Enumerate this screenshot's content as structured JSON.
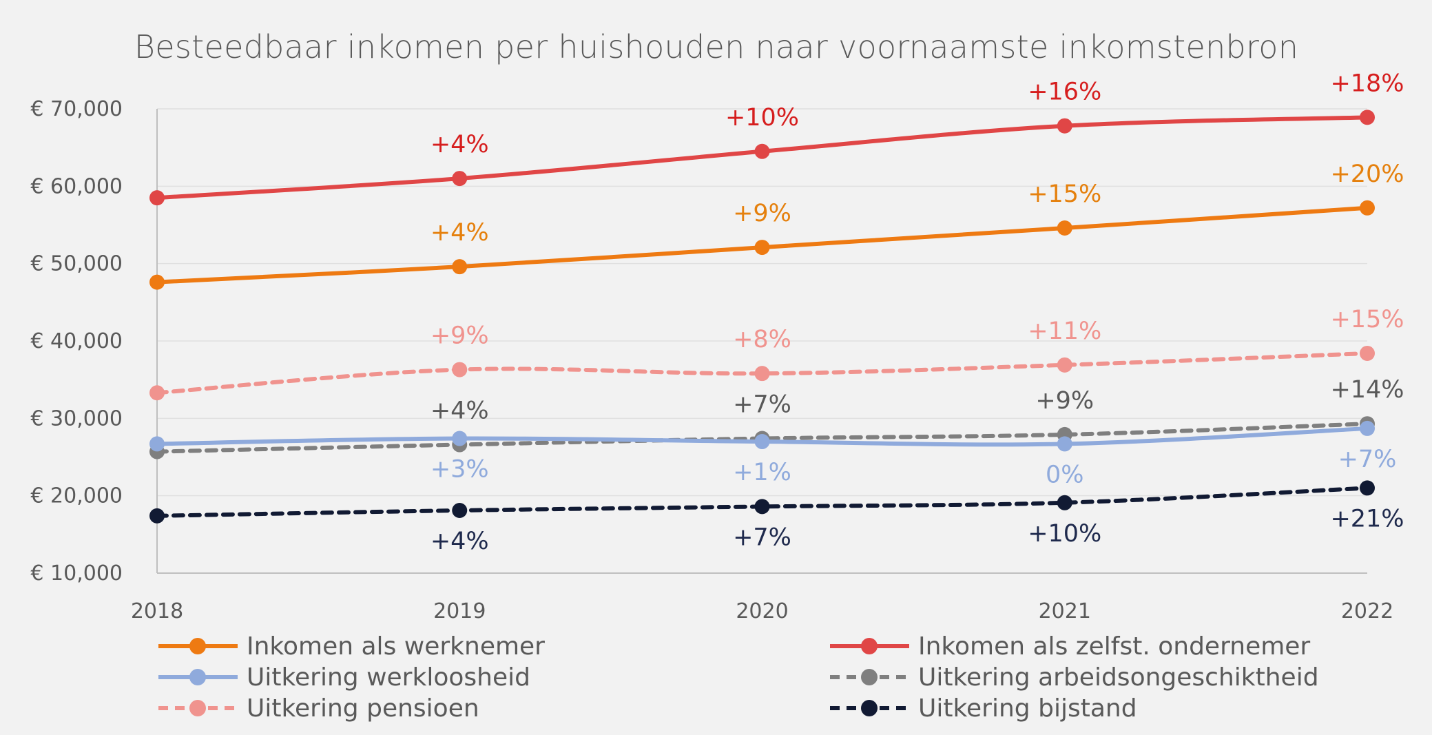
{
  "chart_data": {
    "type": "line",
    "title": "Besteedbaar inkomen per huishouden naar voornaamste inkomstenbron",
    "x": [
      "2018",
      "2019",
      "2020",
      "2021",
      "2022"
    ],
    "ylim": [
      10000,
      70000
    ],
    "yticks": [
      10000,
      20000,
      30000,
      40000,
      50000,
      60000,
      70000
    ],
    "ytick_labels": [
      "€ 10,000",
      "€ 20,000",
      "€ 30,000",
      "€ 40,000",
      "€ 50,000",
      "€ 60,000",
      "€ 70,000"
    ],
    "grid": true,
    "legend_position": "bottom",
    "series": [
      {
        "name": "Inkomen als zelfst. ondernemer",
        "color": "#e04646",
        "dash": false,
        "values": [
          58500,
          61000,
          64500,
          67800,
          68900
        ],
        "labels": [
          "",
          "+4%",
          "+10%",
          "+16%",
          "+18%"
        ],
        "label_color": "#d61e1e",
        "label_pos": "above"
      },
      {
        "name": "Inkomen als werknemer",
        "color": "#ee7a12",
        "dash": false,
        "values": [
          47600,
          49600,
          52100,
          54600,
          57200
        ],
        "labels": [
          "",
          "+4%",
          "+9%",
          "+15%",
          "+20%"
        ],
        "label_color": "#e5800d",
        "label_pos": "above"
      },
      {
        "name": "Uitkering pensioen",
        "color": "#f0938e",
        "dash": true,
        "values": [
          33300,
          36300,
          35800,
          36900,
          38400
        ],
        "labels": [
          "",
          "+9%",
          "+8%",
          "+11%",
          "+15%"
        ],
        "label_color": "#f0938e",
        "label_pos": "above"
      },
      {
        "name": "Uitkering arbeidsongeschiktheid",
        "color": "#7f7f7f",
        "dash": true,
        "values": [
          25700,
          26600,
          27400,
          27900,
          29300
        ],
        "labels": [
          "",
          "+4%",
          "+7%",
          "+9%",
          "+14%"
        ],
        "label_color": "#595959",
        "label_pos": "above"
      },
      {
        "name": "Uitkering werkloosheid",
        "color": "#8faadc",
        "dash": false,
        "values": [
          26700,
          27400,
          27000,
          26700,
          28700
        ],
        "labels": [
          "",
          "+3%",
          "+1%",
          "0%",
          "+7%"
        ],
        "label_color": "#8faadc",
        "label_pos": "below"
      },
      {
        "name": "Uitkering bijstand",
        "color": "#111a33",
        "dash": true,
        "values": [
          17400,
          18100,
          18600,
          19100,
          21000
        ],
        "labels": [
          "",
          "+4%",
          "+7%",
          "+10%",
          "+21%"
        ],
        "label_color": "#1f2a4d",
        "label_pos": "below"
      }
    ],
    "legend_order": [
      "Inkomen als werknemer",
      "Inkomen als zelfst. ondernemer",
      "Uitkering werkloosheid",
      "Uitkering arbeidsongeschiktheid",
      "Uitkering pensioen",
      "Uitkering bijstand"
    ]
  }
}
